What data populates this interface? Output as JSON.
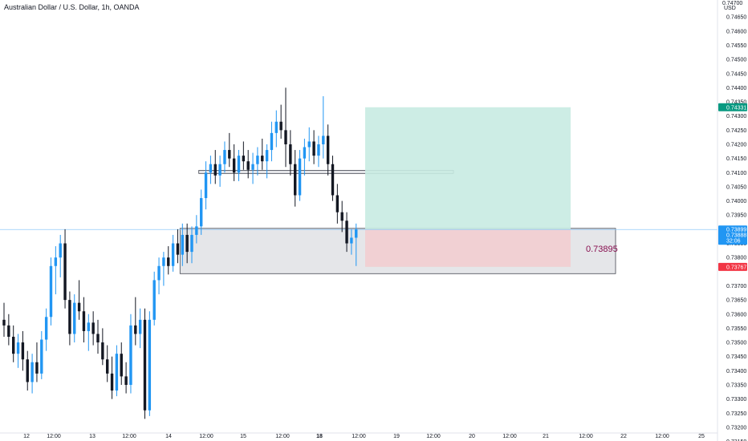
{
  "header": {
    "title": "Australian Dollar / U.S. Dollar, 1h, OANDA"
  },
  "chart_data": {
    "type": "candlestick",
    "symbol": "AUDUSD",
    "interval": "1h",
    "source": "OANDA",
    "currency": "USD",
    "price_axis_top_label": "0.74700",
    "ylim": [
      0.7318,
      0.7471
    ],
    "y_ticks": [
      "0.74650",
      "0.74600",
      "0.74550",
      "0.74500",
      "0.74450",
      "0.74400",
      "0.74350",
      "0.74300",
      "0.74250",
      "0.74200",
      "0.74150",
      "0.74100",
      "0.74050",
      "0.74000",
      "0.73950",
      "0.73850",
      "0.73800",
      "0.73700",
      "0.73650",
      "0.73600",
      "0.73550",
      "0.73500",
      "0.73450",
      "0.73400",
      "0.73350",
      "0.73300",
      "0.73250",
      "0.73200",
      "0.73150"
    ],
    "x_ticks": [
      "12",
      "12:00",
      "13",
      "12:00",
      "14",
      "12:00",
      "15",
      "12:00",
      "18",
      "12:00",
      "19",
      "12:00",
      "20",
      "12:00",
      "21",
      "12:00",
      "22",
      "12:00",
      "25"
    ],
    "current_price": "0.73899",
    "current_price_sub": "0.73888",
    "countdown": "32:06",
    "target_price": "0.74331",
    "stop_price": "0.73767",
    "position_annotation": "0.73895",
    "candles": [
      [
        0.7358,
        0.7364,
        0.7352,
        0.7356
      ],
      [
        0.7356,
        0.736,
        0.7349,
        0.7352
      ],
      [
        0.7352,
        0.7356,
        0.7343,
        0.7346
      ],
      [
        0.7346,
        0.7353,
        0.7341,
        0.735
      ],
      [
        0.735,
        0.7354,
        0.734,
        0.7344
      ],
      [
        0.7344,
        0.7347,
        0.7333,
        0.7336
      ],
      [
        0.7336,
        0.7346,
        0.7332,
        0.7343
      ],
      [
        0.7343,
        0.735,
        0.7336,
        0.7339
      ],
      [
        0.7339,
        0.7354,
        0.7337,
        0.7351
      ],
      [
        0.7351,
        0.7362,
        0.7347,
        0.7359
      ],
      [
        0.7359,
        0.738,
        0.7356,
        0.7377
      ],
      [
        0.7377,
        0.7384,
        0.7367,
        0.738
      ],
      [
        0.738,
        0.7388,
        0.7373,
        0.7385
      ],
      [
        0.7385,
        0.739,
        0.7362,
        0.7365
      ],
      [
        0.7365,
        0.7368,
        0.7349,
        0.7353
      ],
      [
        0.7353,
        0.7367,
        0.735,
        0.7364
      ],
      [
        0.7364,
        0.7372,
        0.7358,
        0.7361
      ],
      [
        0.7361,
        0.7366,
        0.735,
        0.7354
      ],
      [
        0.7354,
        0.736,
        0.7347,
        0.7357
      ],
      [
        0.7357,
        0.7361,
        0.7349,
        0.7353
      ],
      [
        0.7353,
        0.7358,
        0.7346,
        0.735
      ],
      [
        0.735,
        0.7355,
        0.7342,
        0.7344
      ],
      [
        0.7344,
        0.7349,
        0.7336,
        0.7339
      ],
      [
        0.7339,
        0.7345,
        0.733,
        0.7333
      ],
      [
        0.7333,
        0.7349,
        0.7331,
        0.7346
      ],
      [
        0.7346,
        0.735,
        0.7335,
        0.7338
      ],
      [
        0.7338,
        0.7343,
        0.7332,
        0.7335
      ],
      [
        0.7335,
        0.736,
        0.7332,
        0.7356
      ],
      [
        0.7356,
        0.7366,
        0.7349,
        0.7353
      ],
      [
        0.7353,
        0.7362,
        0.7348,
        0.7358
      ],
      [
        0.7358,
        0.7362,
        0.7323,
        0.7326
      ],
      [
        0.7326,
        0.7361,
        0.7324,
        0.7358
      ],
      [
        0.7358,
        0.7375,
        0.7356,
        0.7372
      ],
      [
        0.7372,
        0.738,
        0.7367,
        0.7377
      ],
      [
        0.7377,
        0.7382,
        0.737,
        0.738
      ],
      [
        0.738,
        0.7384,
        0.7374,
        0.7377
      ],
      [
        0.7377,
        0.7388,
        0.7375,
        0.7385
      ],
      [
        0.7385,
        0.739,
        0.7378,
        0.7381
      ],
      [
        0.7381,
        0.7392,
        0.7377,
        0.7388
      ],
      [
        0.7388,
        0.7392,
        0.7378,
        0.7382
      ],
      [
        0.7382,
        0.7391,
        0.7378,
        0.7388
      ],
      [
        0.7388,
        0.7395,
        0.7385,
        0.7391
      ],
      [
        0.7391,
        0.7404,
        0.7388,
        0.7401
      ],
      [
        0.7401,
        0.7414,
        0.7397,
        0.741
      ],
      [
        0.741,
        0.7416,
        0.7406,
        0.7413
      ],
      [
        0.7413,
        0.7418,
        0.7406,
        0.7409
      ],
      [
        0.7409,
        0.7416,
        0.7405,
        0.7413
      ],
      [
        0.7413,
        0.7421,
        0.741,
        0.7418
      ],
      [
        0.7418,
        0.7424,
        0.7412,
        0.7415
      ],
      [
        0.7415,
        0.742,
        0.7407,
        0.741
      ],
      [
        0.741,
        0.7418,
        0.7407,
        0.7416
      ],
      [
        0.7416,
        0.7421,
        0.7411,
        0.7414
      ],
      [
        0.7414,
        0.7418,
        0.7408,
        0.7411
      ],
      [
        0.7411,
        0.7417,
        0.7406,
        0.7413
      ],
      [
        0.7413,
        0.7419,
        0.7409,
        0.7416
      ],
      [
        0.7416,
        0.7422,
        0.7411,
        0.7414
      ],
      [
        0.7414,
        0.742,
        0.7408,
        0.7418
      ],
      [
        0.7418,
        0.7428,
        0.7414,
        0.7424
      ],
      [
        0.7424,
        0.7432,
        0.7419,
        0.7428
      ],
      [
        0.7428,
        0.7434,
        0.7422,
        0.7425
      ],
      [
        0.7425,
        0.744,
        0.7412,
        0.742
      ],
      [
        0.742,
        0.7425,
        0.7409,
        0.7413
      ],
      [
        0.7413,
        0.7418,
        0.7398,
        0.7402
      ],
      [
        0.7402,
        0.7418,
        0.74,
        0.7415
      ],
      [
        0.7415,
        0.7422,
        0.7409,
        0.7419
      ],
      [
        0.7419,
        0.7426,
        0.7414,
        0.7421
      ],
      [
        0.7421,
        0.7425,
        0.7413,
        0.7416
      ],
      [
        0.7416,
        0.7423,
        0.7412,
        0.742
      ],
      [
        0.742,
        0.7437,
        0.7415,
        0.7423
      ],
      [
        0.7423,
        0.7427,
        0.7409,
        0.7413
      ],
      [
        0.7413,
        0.7416,
        0.74,
        0.7402
      ],
      [
        0.7402,
        0.7406,
        0.7392,
        0.7396
      ],
      [
        0.7396,
        0.74,
        0.7389,
        0.7393
      ],
      [
        0.7393,
        0.7396,
        0.7382,
        0.7385
      ],
      [
        0.7385,
        0.739,
        0.7381,
        0.7387
      ],
      [
        0.7387,
        0.7392,
        0.7377,
        0.739
      ]
    ],
    "zones": [
      {
        "top": 0.74108,
        "bottom": 0.74097,
        "from_index": 42,
        "to_end": 0.7415
      },
      {
        "top": 0.73903,
        "bottom": 0.73743,
        "from_index": 38,
        "to_end": 0.7362
      }
    ],
    "colors": {
      "up": "#2196f3",
      "down": "#131722",
      "target_zone": "#c8ebe2",
      "stop_zone": "#f2cdd0",
      "zone_fill": "#dcdde1",
      "price_line": "#90caf9",
      "target_tag": "#089981",
      "stop_tag": "#f23645",
      "current_tag": "#2196f3",
      "annotation": "#880e4f"
    }
  }
}
